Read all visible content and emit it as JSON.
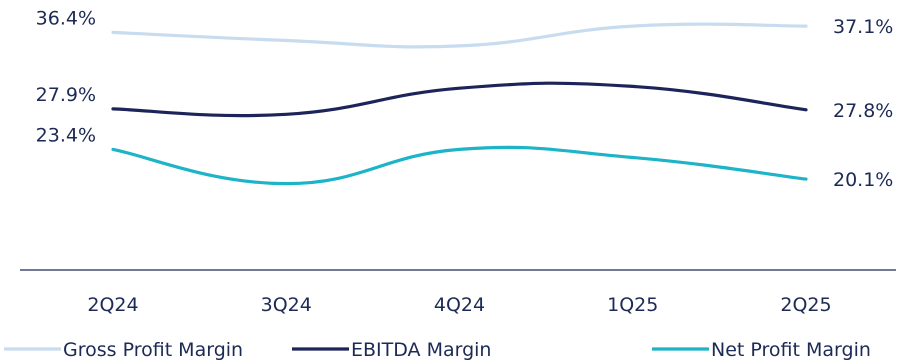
{
  "chart_data": {
    "type": "line",
    "title": "",
    "xlabel": "",
    "ylabel": "",
    "categories": [
      "2Q24",
      "3Q24",
      "4Q24",
      "1Q25",
      "2Q25"
    ],
    "ylim": [
      10,
      40
    ],
    "grid": false,
    "legend_position": "bottom",
    "series": [
      {
        "name": "Gross Profit Margin",
        "color": "#c8dcef",
        "values": [
          36.4,
          35.5,
          34.9,
          37.1,
          37.1
        ],
        "start_label": "36.4%",
        "end_label": "37.1%"
      },
      {
        "name": "EBITDA Margin",
        "color": "#1c2459",
        "values": [
          27.9,
          27.3,
          30.2,
          30.4,
          27.8
        ],
        "start_label": "27.9%",
        "end_label": "27.8%"
      },
      {
        "name": "Net Profit Margin",
        "color": "#1db4c8",
        "values": [
          23.4,
          19.6,
          23.4,
          22.5,
          20.1
        ],
        "start_label": "23.4%",
        "end_label": "20.1%"
      }
    ]
  }
}
